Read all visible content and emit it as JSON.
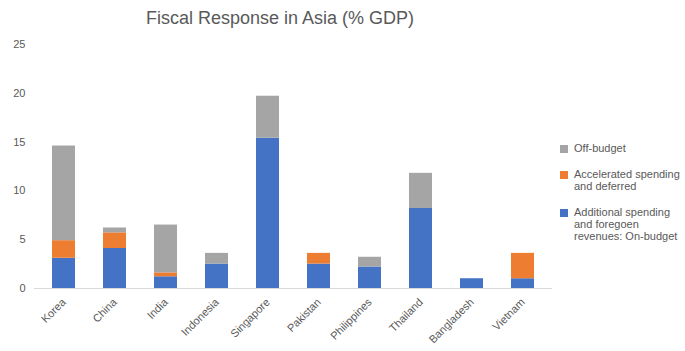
{
  "chart_data": {
    "type": "bar",
    "stacked": true,
    "title": "Fiscal Response in Asia (% GDP)",
    "categories": [
      "Korea",
      "China",
      "India",
      "Indonesia",
      "Singapore",
      "Pakistan",
      "Philippines",
      "Thailand",
      "Bangladesh",
      "Vietnam"
    ],
    "series": [
      {
        "name": "Additional spending and foregoen revenues: On-budget",
        "color": "#4472c4",
        "values": [
          3.1,
          4.1,
          1.2,
          2.5,
          15.4,
          2.5,
          2.2,
          8.2,
          1.0,
          1.0
        ]
      },
      {
        "name": "Accelerated spending and deferred",
        "color": "#ed7d31",
        "values": [
          1.8,
          1.6,
          0.4,
          0,
          0,
          1.1,
          0,
          0,
          0,
          2.6
        ]
      },
      {
        "name": "Off-budget",
        "color": "#a5a5a5",
        "values": [
          9.7,
          0.5,
          4.9,
          1.1,
          4.3,
          0,
          1.0,
          3.6,
          0,
          0
        ]
      }
    ],
    "ylim": [
      0,
      25
    ],
    "yticks": [
      0,
      5,
      10,
      15,
      20,
      25
    ],
    "grid": false,
    "legend": "right"
  }
}
